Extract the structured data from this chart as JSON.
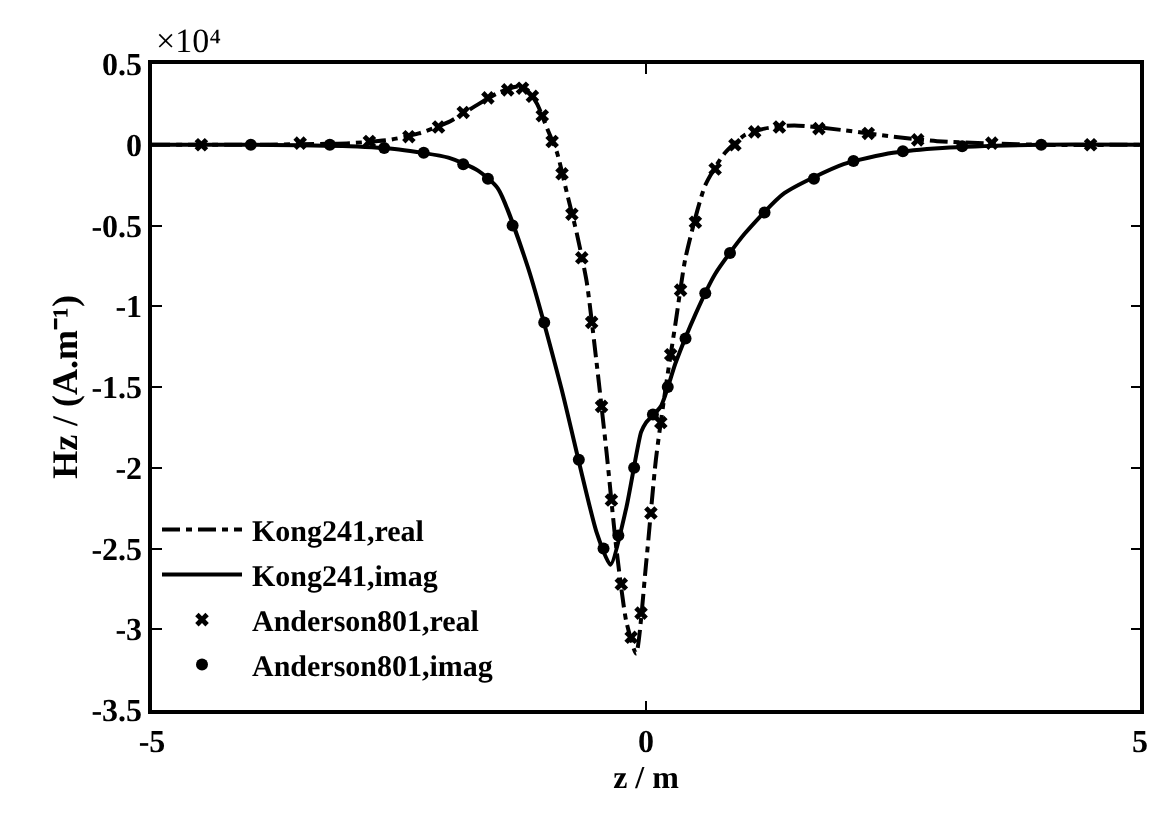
{
  "chart_data": {
    "type": "line",
    "xlabel": "z / m",
    "ylabel": "Hz / (A.m⁻¹)",
    "annotations": [
      "×10⁴"
    ],
    "xlim": [
      -5,
      5
    ],
    "xticks": [
      -5,
      0,
      5
    ],
    "ylim": [
      -3.5,
      0.5
    ],
    "yticks": [
      0.5,
      0,
      -0.5,
      -1,
      -1.5,
      -2,
      -2.5,
      -3,
      -3.5
    ],
    "legend": "bottom left",
    "series": [
      {
        "name": "Kong241,real",
        "color": "#000000",
        "line_style": "dashed",
        "x": [
          -5,
          -4,
          -3,
          -2.6,
          -2.3,
          -2,
          -1.7,
          -1.5,
          -1.3,
          -1.2,
          -1.1,
          -1,
          -0.9,
          -0.8,
          -0.7,
          -0.6,
          -0.5,
          -0.4,
          -0.3,
          -0.2,
          -0.1,
          0,
          0.1,
          0.2,
          0.3,
          0.4,
          0.6,
          0.8,
          1,
          1.2,
          1.5,
          2,
          2.5,
          3,
          4,
          5
        ],
        "values": [
          0,
          0,
          0.01,
          0.03,
          0.07,
          0.14,
          0.25,
          0.32,
          0.36,
          0.34,
          0.25,
          0.1,
          -0.05,
          -0.3,
          -0.55,
          -0.85,
          -1.35,
          -1.9,
          -2.5,
          -2.95,
          -3.15,
          -2.6,
          -1.95,
          -1.5,
          -1.1,
          -0.7,
          -0.25,
          -0.05,
          0.06,
          0.1,
          0.12,
          0.09,
          0.05,
          0.02,
          0,
          0
        ]
      },
      {
        "name": "Kong241,imag",
        "color": "#000000",
        "line_style": "solid",
        "x": [
          -5,
          -4,
          -3,
          -2.5,
          -2,
          -1.7,
          -1.5,
          -1.2,
          -0.86,
          -0.5,
          -0.36,
          -0.2,
          -0.05,
          0,
          0.15,
          0.3,
          0.5,
          0.7,
          1,
          1.4,
          2,
          2.5,
          3,
          4,
          5
        ],
        "values": [
          0,
          0,
          -0.01,
          -0.03,
          -0.08,
          -0.16,
          -0.27,
          -0.75,
          -1.5,
          -2.4,
          -2.6,
          -2.25,
          -1.78,
          -1.72,
          -1.62,
          -1.35,
          -1.05,
          -0.8,
          -0.55,
          -0.3,
          -0.12,
          -0.05,
          -0.02,
          0,
          0
        ]
      },
      {
        "name": "Anderson801,real",
        "type": "scatter",
        "color": "#000000",
        "marker": "cross",
        "x": [
          -4.5,
          -3.5,
          -2.8,
          -2.4,
          -2.1,
          -1.85,
          -1.6,
          -1.4,
          -1.25,
          -1.15,
          -1.05,
          -0.95,
          -0.85,
          -0.75,
          -0.65,
          -0.55,
          -0.45,
          -0.35,
          -0.25,
          -0.15,
          -0.05,
          0.05,
          0.15,
          0.25,
          0.35,
          0.5,
          0.7,
          0.9,
          1.1,
          1.35,
          1.75,
          2.25,
          2.75,
          3.5,
          4.5
        ],
        "values": [
          0,
          0.01,
          0.02,
          0.05,
          0.11,
          0.2,
          0.29,
          0.34,
          0.35,
          0.3,
          0.18,
          0.02,
          -0.18,
          -0.43,
          -0.7,
          -1.1,
          -1.62,
          -2.2,
          -2.72,
          -3.05,
          -2.9,
          -2.28,
          -1.72,
          -1.3,
          -0.9,
          -0.48,
          -0.15,
          0,
          0.08,
          0.11,
          0.1,
          0.07,
          0.03,
          0.01,
          0
        ]
      },
      {
        "name": "Anderson801,imag",
        "type": "scatter",
        "color": "#000000",
        "marker": "circle",
        "x": [
          -4,
          -3.2,
          -2.65,
          -2.25,
          -1.85,
          -1.6,
          -1.35,
          -1.03,
          -0.68,
          -0.43,
          -0.28,
          -0.12,
          0.07,
          0.22,
          0.4,
          0.6,
          0.85,
          1.2,
          1.7,
          2.1,
          2.6,
          3.2,
          4
        ],
        "values": [
          0,
          0,
          -0.02,
          -0.05,
          -0.12,
          -0.21,
          -0.5,
          -1.1,
          -1.95,
          -2.5,
          -2.42,
          -2,
          -1.67,
          -1.5,
          -1.2,
          -0.92,
          -0.67,
          -0.42,
          -0.21,
          -0.1,
          -0.04,
          -0.01,
          0
        ]
      }
    ]
  }
}
